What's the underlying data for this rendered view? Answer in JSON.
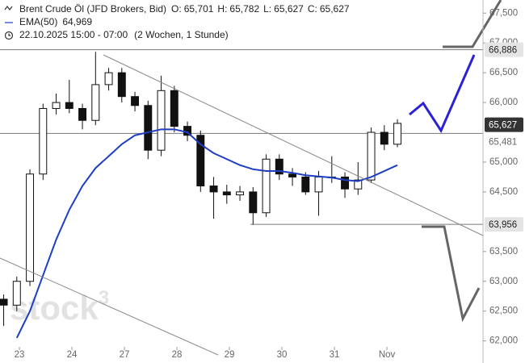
{
  "chart_data": {
    "type": "candlestick",
    "title": "Brent Crude Öl (JFD Brokers, Bid)",
    "ohlc_labels": [
      {
        "name": "O:",
        "value": {
          "value": 65701,
          "label": "65,701"
        }
      },
      {
        "name": "H:",
        "value": {
          "value": 65782,
          "label": "65,782"
        }
      },
      {
        "name": "L:",
        "value": {
          "value": 65627,
          "label": "65,627"
        }
      },
      {
        "name": "C:",
        "value": {
          "value": 65627,
          "label": "65,627"
        }
      }
    ],
    "period": "22.10.2025 15:00 - 07:00",
    "period_note": "(2 Wochen, 1 Stunde)",
    "watermark": {
      "text": "stock",
      "sup": "3"
    },
    "x": [
      -0.3,
      -0.05,
      0.2,
      0.45,
      0.7,
      0.95,
      1.2,
      1.45,
      1.7,
      1.95,
      2.2,
      2.45,
      2.7,
      2.95,
      3.2,
      3.45,
      3.7,
      3.95,
      4.2,
      4.45,
      4.7,
      4.95,
      5.2,
      5.45,
      5.7,
      5.95,
      6.2,
      6.45,
      6.7,
      6.95,
      7.2
    ],
    "open": [
      62700,
      62600,
      63000,
      64800,
      65900,
      66000,
      65900,
      65700,
      66300,
      66500,
      66100,
      65950,
      65200,
      66200,
      65600,
      65450,
      64600,
      64500,
      64450,
      64500,
      64150,
      65050,
      64800,
      64750,
      64500,
      64750,
      64750,
      64550,
      64700,
      65500,
      65300
    ],
    "high": [
      62780,
      63080,
      64880,
      65980,
      66150,
      66380,
      65980,
      66850,
      66580,
      66580,
      66180,
      66030,
      66450,
      66280,
      65680,
      65530,
      64750,
      64620,
      64600,
      64580,
      65130,
      65130,
      64900,
      64830,
      64850,
      65100,
      64830,
      65000,
      65580,
      65620,
      65720
    ],
    "low": [
      62250,
      62500,
      62920,
      64700,
      65800,
      65820,
      65550,
      65620,
      66200,
      66000,
      65850,
      65050,
      65100,
      65500,
      65350,
      64500,
      64050,
      64300,
      64350,
      63950,
      64080,
      64700,
      64600,
      64450,
      64100,
      64650,
      64400,
      64450,
      64650,
      65200,
      65250
    ],
    "close": [
      62600,
      63000,
      64800,
      65900,
      66000,
      65900,
      65700,
      66300,
      66500,
      66100,
      65950,
      65200,
      66200,
      65600,
      65450,
      64600,
      64500,
      64450,
      64500,
      64150,
      65050,
      64800,
      64750,
      64500,
      64750,
      64750,
      64550,
      64700,
      65500,
      65300,
      65650
    ],
    "color_up": "#ffffff",
    "color_down": "#111111",
    "overlays": [
      {
        "name": "EMA(50)",
        "color": "#1e3fc4",
        "last_value": {
          "value": 64969,
          "label": "64,969"
        },
        "values": [
          null,
          62050,
          62500,
          63100,
          63700,
          64200,
          64600,
          64900,
          65100,
          65300,
          65450,
          65500,
          65550,
          65550,
          65500,
          65300,
          65150,
          65050,
          64950,
          64880,
          64850,
          64850,
          64820,
          64780,
          64760,
          64740,
          64700,
          64680,
          64750,
          64850,
          64950
        ]
      }
    ],
    "levels": [
      {
        "value": 66886,
        "label": "66,886",
        "style": "box"
      },
      {
        "value": 65481,
        "label": "65,481",
        "style": "text"
      },
      {
        "value": 65627,
        "label": "65,627",
        "style": "price"
      },
      {
        "value": 63956,
        "label": "63,956",
        "style": "box"
      }
    ],
    "xlim": [
      -0.37,
      8.83
    ],
    "ylim": [
      61900,
      67720
    ],
    "xticks": [
      {
        "value": 0,
        "label": "23"
      },
      {
        "value": 1,
        "label": "24"
      },
      {
        "value": 2,
        "label": "27"
      },
      {
        "value": 3,
        "label": "28"
      },
      {
        "value": 4,
        "label": "29"
      },
      {
        "value": 5,
        "label": "30"
      },
      {
        "value": 6,
        "label": "31"
      },
      {
        "value": 7,
        "label": "Nov"
      }
    ],
    "yticks": [
      {
        "value": 67500,
        "label": "67,500"
      },
      {
        "value": 67000,
        "label": "67,000"
      },
      {
        "value": 66500,
        "label": "66,500"
      },
      {
        "value": 66000,
        "label": "66,000"
      },
      {
        "value": 65000,
        "label": "65,000"
      },
      {
        "value": 64500,
        "label": "64,500"
      },
      {
        "value": 63500,
        "label": "63,500"
      },
      {
        "value": 63000,
        "label": "63,000"
      },
      {
        "value": 62500,
        "label": "62,500"
      },
      {
        "value": 62000,
        "label": "62,000"
      }
    ]
  }
}
